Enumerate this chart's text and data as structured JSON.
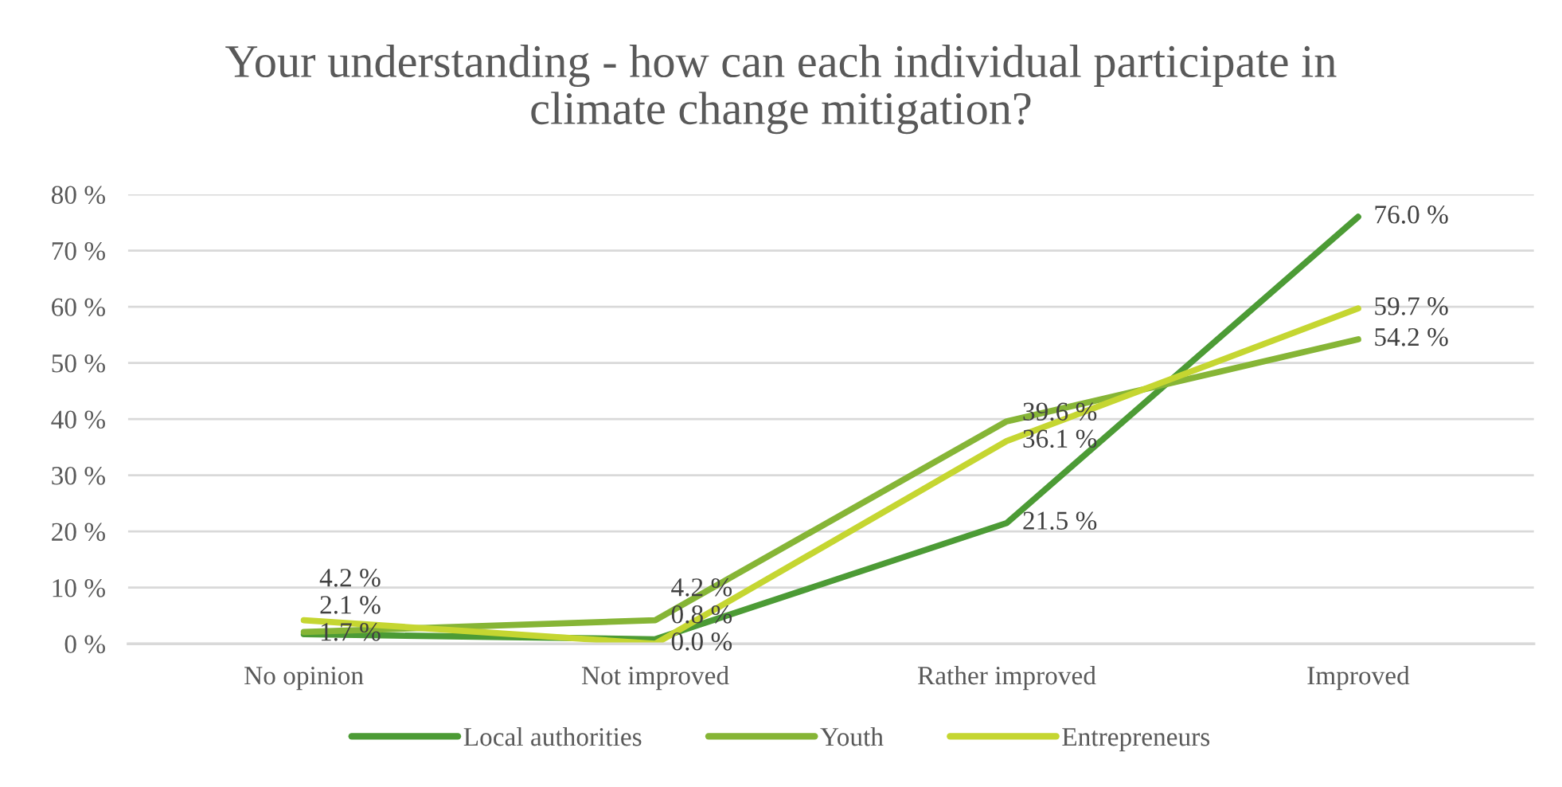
{
  "chart_data": {
    "type": "line",
    "title": "Your understanding - how can each individual participate in climate change mitigation?",
    "categories": [
      "No opinion",
      "Not improved",
      "Rather improved",
      "Improved"
    ],
    "series": [
      {
        "name": "Local authorities",
        "color": "#4c9b35",
        "values": [
          1.7,
          0.8,
          21.5,
          76.0
        ],
        "value_labels": [
          "1.7 %",
          "0.8 %",
          "21.5 %",
          "76.0 %"
        ]
      },
      {
        "name": "Youth",
        "color": "#86b536",
        "values": [
          2.1,
          4.2,
          39.6,
          54.2
        ],
        "value_labels": [
          "2.1 %",
          "4.2 %",
          "39.6 %",
          "54.2 %"
        ]
      },
      {
        "name": "Entrepreneurs",
        "color": "#c5d631",
        "values": [
          4.2,
          0.0,
          36.1,
          59.7
        ],
        "value_labels": [
          "4.2 %",
          "0.0 %",
          "36.1 %",
          "59.7 %"
        ]
      }
    ],
    "ylim": [
      0,
      80
    ],
    "yticks": [
      {
        "value": 0,
        "label": "0 %"
      },
      {
        "value": 10,
        "label": "10 %"
      },
      {
        "value": 20,
        "label": "20 %"
      },
      {
        "value": 30,
        "label": "30 %"
      },
      {
        "value": 40,
        "label": "40 %"
      },
      {
        "value": 50,
        "label": "50 %"
      },
      {
        "value": 60,
        "label": "60 %"
      },
      {
        "value": 70,
        "label": "70 %"
      },
      {
        "value": 80,
        "label": "80 %"
      }
    ],
    "grid": "y",
    "legend": "bottom",
    "marker": "none",
    "line_style": "solid"
  }
}
